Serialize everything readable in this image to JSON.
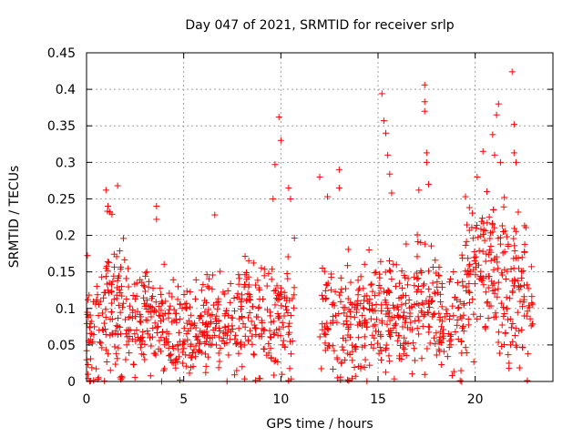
{
  "chart_data": {
    "type": "scatter",
    "title": "Day 047 of 2021, SRMTID for receiver srlp",
    "xlabel": "GPS time / hours",
    "ylabel": "SRMTID / TECUs",
    "xlim": [
      0,
      24
    ],
    "ylim": [
      0,
      0.45
    ],
    "xticks": [
      0,
      5,
      10,
      15,
      20
    ],
    "xtick_labels": [
      "0",
      "5",
      "10",
      "15",
      "20"
    ],
    "yticks": [
      0,
      0.05,
      0.1,
      0.15,
      0.2,
      0.25,
      0.3,
      0.35,
      0.4,
      0.45
    ],
    "ytick_labels": [
      "0",
      "0.05",
      "0.1",
      "0.15",
      "0.2",
      "0.25",
      "0.3",
      "0.35",
      "0.4",
      "0.45"
    ],
    "grid": true,
    "marker": "plus",
    "series": [
      {
        "name": "srlp",
        "color": "#ff0000",
        "density_profile": [
          {
            "x_range": [
              0.0,
              1.0
            ],
            "y_mean": 0.07,
            "y_spread": 0.05,
            "n": 60
          },
          {
            "x_range": [
              1.0,
              2.0
            ],
            "y_mean": 0.1,
            "y_spread": 0.06,
            "n": 70
          },
          {
            "x_range": [
              2.0,
              4.0
            ],
            "y_mean": 0.08,
            "y_spread": 0.04,
            "n": 120
          },
          {
            "x_range": [
              4.0,
              6.0
            ],
            "y_mean": 0.07,
            "y_spread": 0.04,
            "n": 120
          },
          {
            "x_range": [
              6.0,
              8.0
            ],
            "y_mean": 0.08,
            "y_spread": 0.04,
            "n": 120
          },
          {
            "x_range": [
              8.0,
              10.7
            ],
            "y_mean": 0.09,
            "y_spread": 0.05,
            "n": 150
          },
          {
            "x_range": [
              12.0,
              14.0
            ],
            "y_mean": 0.08,
            "y_spread": 0.05,
            "n": 110
          },
          {
            "x_range": [
              14.0,
              16.0
            ],
            "y_mean": 0.09,
            "y_spread": 0.05,
            "n": 120
          },
          {
            "x_range": [
              16.0,
              18.0
            ],
            "y_mean": 0.1,
            "y_spread": 0.05,
            "n": 120
          },
          {
            "x_range": [
              18.0,
              19.5
            ],
            "y_mean": 0.09,
            "y_spread": 0.05,
            "n": 80
          },
          {
            "x_range": [
              19.5,
              21.5
            ],
            "y_mean": 0.15,
            "y_spread": 0.07,
            "n": 130
          },
          {
            "x_range": [
              21.5,
              23.0
            ],
            "y_mean": 0.12,
            "y_spread": 0.06,
            "n": 90
          }
        ],
        "outliers": [
          {
            "x": 1.0,
            "y": 0.262
          },
          {
            "x": 1.1,
            "y": 0.24
          },
          {
            "x": 1.2,
            "y": 0.232
          },
          {
            "x": 1.6,
            "y": 0.268
          },
          {
            "x": 3.6,
            "y": 0.24
          },
          {
            "x": 3.6,
            "y": 0.222
          },
          {
            "x": 6.6,
            "y": 0.228
          },
          {
            "x": 9.6,
            "y": 0.25
          },
          {
            "x": 9.7,
            "y": 0.297
          },
          {
            "x": 9.9,
            "y": 0.362
          },
          {
            "x": 10.0,
            "y": 0.33
          },
          {
            "x": 10.4,
            "y": 0.265
          },
          {
            "x": 10.5,
            "y": 0.25
          },
          {
            "x": 12.0,
            "y": 0.28
          },
          {
            "x": 12.4,
            "y": 0.253
          },
          {
            "x": 13.0,
            "y": 0.29
          },
          {
            "x": 13.0,
            "y": 0.265
          },
          {
            "x": 15.2,
            "y": 0.394
          },
          {
            "x": 15.3,
            "y": 0.357
          },
          {
            "x": 15.4,
            "y": 0.34
          },
          {
            "x": 15.5,
            "y": 0.31
          },
          {
            "x": 15.6,
            "y": 0.284
          },
          {
            "x": 15.7,
            "y": 0.258
          },
          {
            "x": 17.1,
            "y": 0.262
          },
          {
            "x": 17.4,
            "y": 0.406
          },
          {
            "x": 17.4,
            "y": 0.383
          },
          {
            "x": 17.4,
            "y": 0.37
          },
          {
            "x": 17.5,
            "y": 0.313
          },
          {
            "x": 17.5,
            "y": 0.3
          },
          {
            "x": 17.6,
            "y": 0.27
          },
          {
            "x": 19.5,
            "y": 0.253
          },
          {
            "x": 20.1,
            "y": 0.28
          },
          {
            "x": 20.4,
            "y": 0.315
          },
          {
            "x": 20.6,
            "y": 0.26
          },
          {
            "x": 20.9,
            "y": 0.338
          },
          {
            "x": 21.0,
            "y": 0.31
          },
          {
            "x": 21.1,
            "y": 0.365
          },
          {
            "x": 21.2,
            "y": 0.38
          },
          {
            "x": 21.3,
            "y": 0.3
          },
          {
            "x": 21.5,
            "y": 0.252
          },
          {
            "x": 21.9,
            "y": 0.424
          },
          {
            "x": 22.0,
            "y": 0.352
          },
          {
            "x": 22.1,
            "y": 0.3
          },
          {
            "x": 22.0,
            "y": 0.313
          },
          {
            "x": 19.3,
            "y": 0.0
          }
        ]
      }
    ]
  }
}
